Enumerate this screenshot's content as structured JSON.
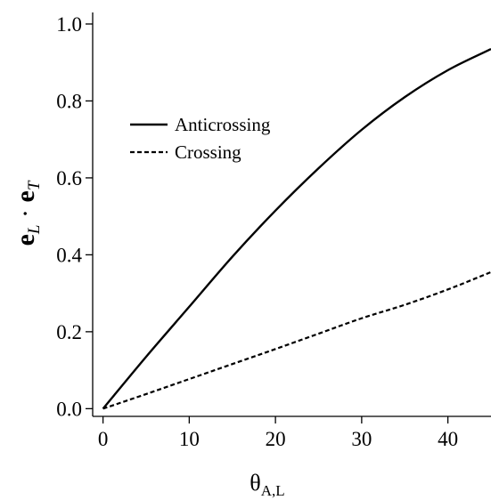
{
  "chart_data": {
    "type": "line",
    "xlabel": {
      "base": "θ",
      "sub": "A,L"
    },
    "ylabel": {
      "e1": "e",
      "sub1": "L",
      "dot": " · ",
      "e2": "e",
      "sub2": "T"
    },
    "xlim": [
      -1.2,
      45
    ],
    "ylim": [
      -0.02,
      1.03
    ],
    "x_ticks": [
      0,
      10,
      20,
      30,
      40
    ],
    "y_ticks": [
      0.0,
      0.2,
      0.4,
      0.6,
      0.8,
      1.0
    ],
    "x_tick_labels": [
      "0",
      "10",
      "20",
      "30",
      "40"
    ],
    "y_tick_labels": [
      "0.0",
      "0.2",
      "0.4",
      "0.6",
      "0.8",
      "1.0"
    ],
    "grid": false,
    "legend_position": "upper-left",
    "series": [
      {
        "name": "Anticrossing",
        "style": "solid",
        "x": [
          0,
          5,
          10,
          15,
          20,
          25,
          30,
          35,
          40,
          45
        ],
        "y": [
          0.0,
          0.135,
          0.265,
          0.395,
          0.515,
          0.625,
          0.725,
          0.81,
          0.88,
          0.935
        ]
      },
      {
        "name": "Crossing",
        "style": "dashed",
        "x": [
          0,
          5,
          10,
          15,
          20,
          25,
          30,
          35,
          40,
          45
        ],
        "y": [
          0.0,
          0.038,
          0.077,
          0.116,
          0.155,
          0.195,
          0.235,
          0.27,
          0.31,
          0.355
        ]
      }
    ]
  }
}
